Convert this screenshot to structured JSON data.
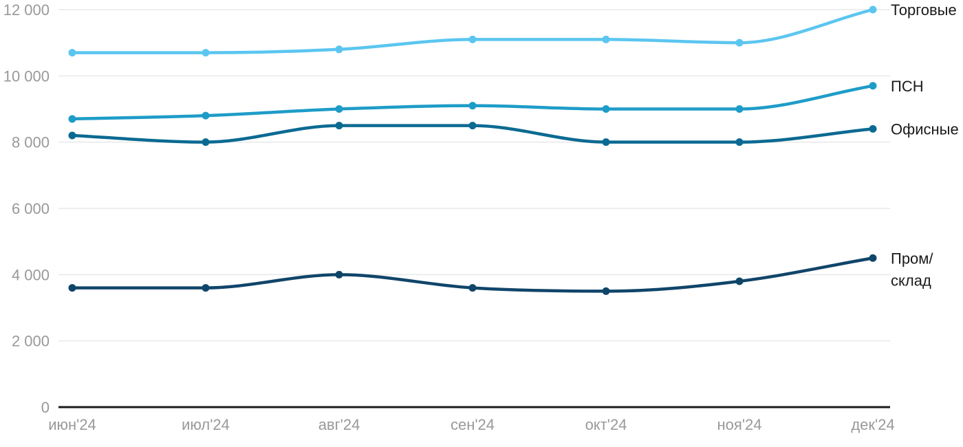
{
  "chart_data": {
    "type": "line",
    "title": "",
    "xlabel": "",
    "ylabel": "",
    "x_categories": [
      "июн'24",
      "июл'24",
      "авг'24",
      "сен'24",
      "окт'24",
      "ноя'24",
      "дек'24"
    ],
    "ylim": [
      0,
      12000
    ],
    "grid": true,
    "legend_position": "right-of-line-end",
    "y_ticks": [
      {
        "value": 0,
        "label": "0"
      },
      {
        "value": 2000,
        "label": "2 000"
      },
      {
        "value": 4000,
        "label": "4 000"
      },
      {
        "value": 6000,
        "label": "6 000"
      },
      {
        "value": 8000,
        "label": "8 000"
      },
      {
        "value": 10000,
        "label": "10 000"
      },
      {
        "value": 12000,
        "label": "12 000"
      }
    ],
    "series": [
      {
        "name": "Торговые",
        "label_lines": [
          "Торговые"
        ],
        "color": "#5BC6F0",
        "values": [
          10700,
          10700,
          10800,
          11100,
          11100,
          11000,
          12000
        ]
      },
      {
        "name": "ПСН",
        "label_lines": [
          "ПСН"
        ],
        "color": "#1E9CC8",
        "values": [
          8700,
          8800,
          9000,
          9100,
          9000,
          9000,
          9700
        ]
      },
      {
        "name": "Офисные",
        "label_lines": [
          "Офисные"
        ],
        "color": "#0B6A92",
        "values": [
          8200,
          8000,
          8500,
          8500,
          8000,
          8000,
          8400
        ]
      },
      {
        "name": "Пром/склад",
        "label_lines": [
          "Пром/",
          "склад"
        ],
        "color": "#10456A",
        "values": [
          3600,
          3600,
          4000,
          3600,
          3500,
          3800,
          4500
        ]
      }
    ]
  },
  "colors": {
    "background": "#FFFFFF",
    "grid_line": "#E8E8E8",
    "axis_line": "#1A1A1A",
    "tick_text": "#999999",
    "legend_text": "#1A1A1A"
  }
}
